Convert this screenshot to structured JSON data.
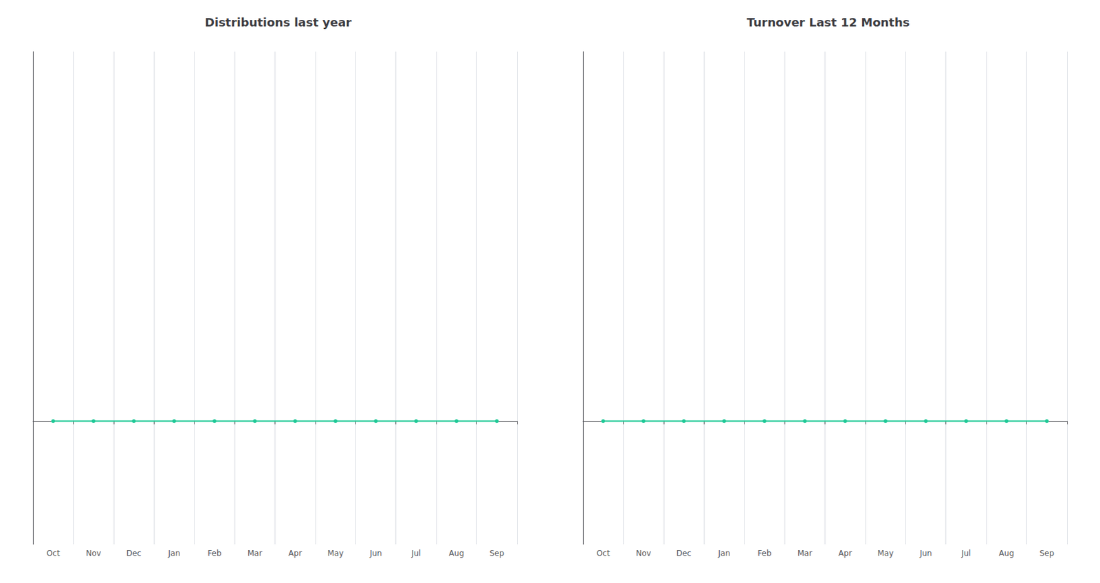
{
  "chart_data": [
    {
      "type": "line",
      "title": "Distributions last year",
      "categories": [
        "Oct",
        "Nov",
        "Dec",
        "Jan",
        "Feb",
        "Mar",
        "Apr",
        "May",
        "Jun",
        "Jul",
        "Aug",
        "Sep"
      ],
      "values": [
        0,
        0,
        0,
        0,
        0,
        0,
        0,
        0,
        0,
        0,
        0,
        0
      ],
      "color": "#20c997",
      "marker": "circle",
      "ylim": [
        -0.5,
        1.5
      ],
      "grid": true,
      "tick_labels": "x"
    },
    {
      "type": "line",
      "title": "Turnover Last 12 Months",
      "categories": [
        "Oct",
        "Nov",
        "Dec",
        "Jan",
        "Feb",
        "Mar",
        "Apr",
        "May",
        "Jun",
        "Jul",
        "Aug",
        "Sep"
      ],
      "values": [
        0,
        0,
        0,
        0,
        0,
        0,
        0,
        0,
        0,
        0,
        0,
        0
      ],
      "color": "#20c997",
      "marker": "circle",
      "ylim": [
        -0.5,
        1.5
      ],
      "grid": true,
      "tick_labels": "x"
    }
  ]
}
